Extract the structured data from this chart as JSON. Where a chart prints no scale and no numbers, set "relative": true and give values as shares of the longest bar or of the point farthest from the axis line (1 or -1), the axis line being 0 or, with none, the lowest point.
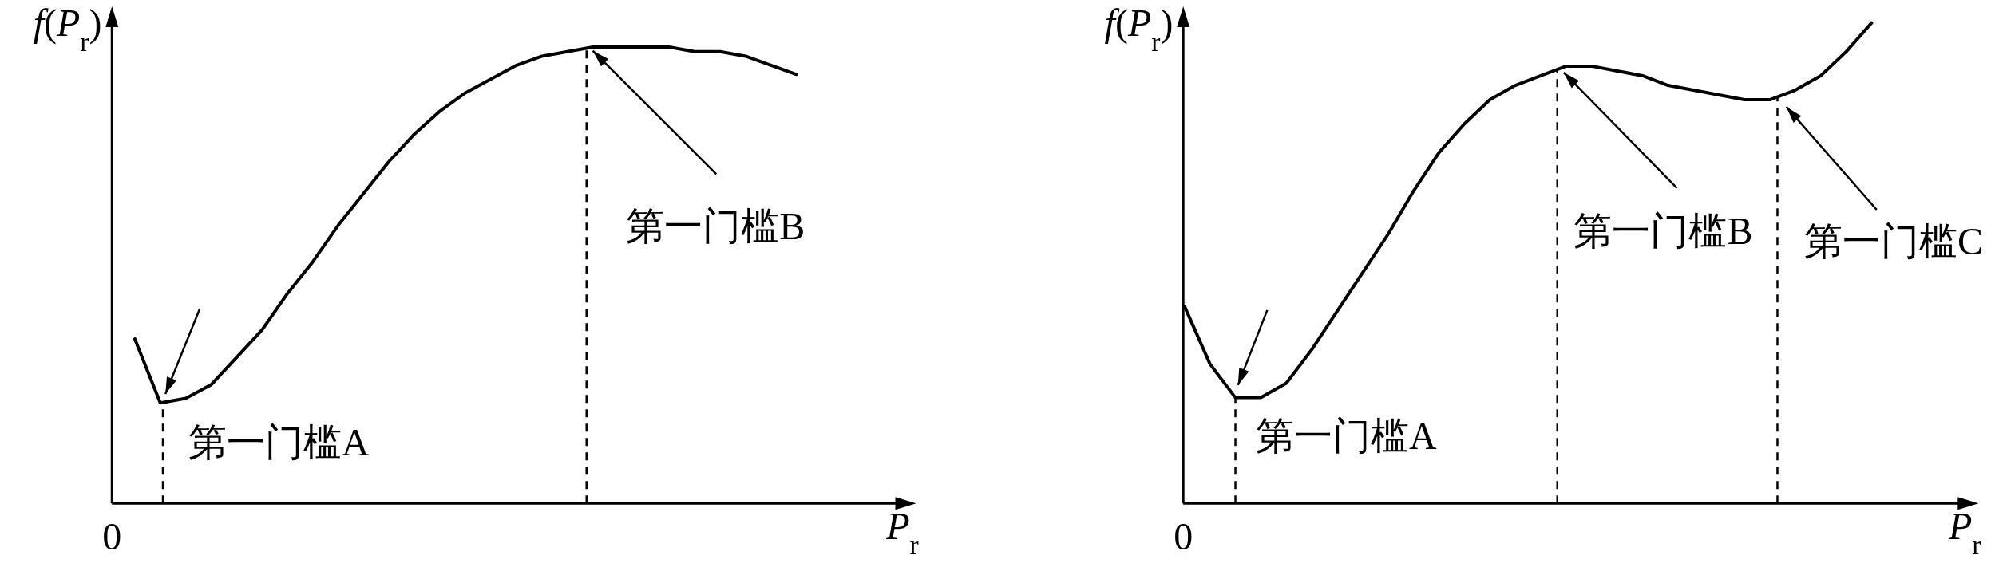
{
  "chart_data": [
    {
      "type": "line",
      "relative": true,
      "ylabel": "*f*(*P*$_{r}$)",
      "xlabel": "*P*$_{r}$",
      "annotations": [
        "0",
        "第一门槛A",
        "第一门槛B"
      ],
      "categories": [
        null,
        null,
        null,
        null,
        null,
        null,
        null,
        null,
        null,
        null,
        null,
        null,
        null,
        null,
        null,
        null,
        null,
        null,
        null,
        null,
        null,
        null,
        null,
        null,
        null,
        null,
        null
      ],
      "series": [
        {
          "color": "#000000",
          "values": [
            0.36,
            0.22,
            0.23,
            0.26,
            0.32,
            0.38,
            0.46,
            0.53,
            0.61,
            0.68,
            0.75,
            0.81,
            0.86,
            0.9,
            0.93,
            0.96,
            0.98,
            0.99,
            1,
            1,
            1,
            1,
            0.99,
            0.99,
            0.98,
            0.96,
            0.94
          ]
        }
      ]
    },
    {
      "type": "line",
      "relative": true,
      "ylabel": "*f*(*P*$_{r}$)",
      "xlabel": "*P*$_{r}$",
      "annotations": [
        "0",
        "第一门槛A",
        "第一门槛B",
        "第一门槛C"
      ],
      "categories": [
        null,
        null,
        null,
        null,
        null,
        null,
        null,
        null,
        null,
        null,
        null,
        null,
        null,
        null,
        null,
        null,
        null,
        null,
        null,
        null,
        null,
        null,
        null,
        null,
        null,
        null,
        null,
        null
      ],
      "series": [
        {
          "color": "#000000",
          "values": [
            0.41,
            0.29,
            0.22,
            0.22,
            0.25,
            0.32,
            0.4,
            0.48,
            0.56,
            0.65,
            0.73,
            0.79,
            0.84,
            0.87,
            0.89,
            0.91,
            0.91,
            0.9,
            0.89,
            0.87,
            0.86,
            0.85,
            0.84,
            0.84,
            0.86,
            0.89,
            0.94,
            1
          ]
        }
      ]
    }
  ]
}
